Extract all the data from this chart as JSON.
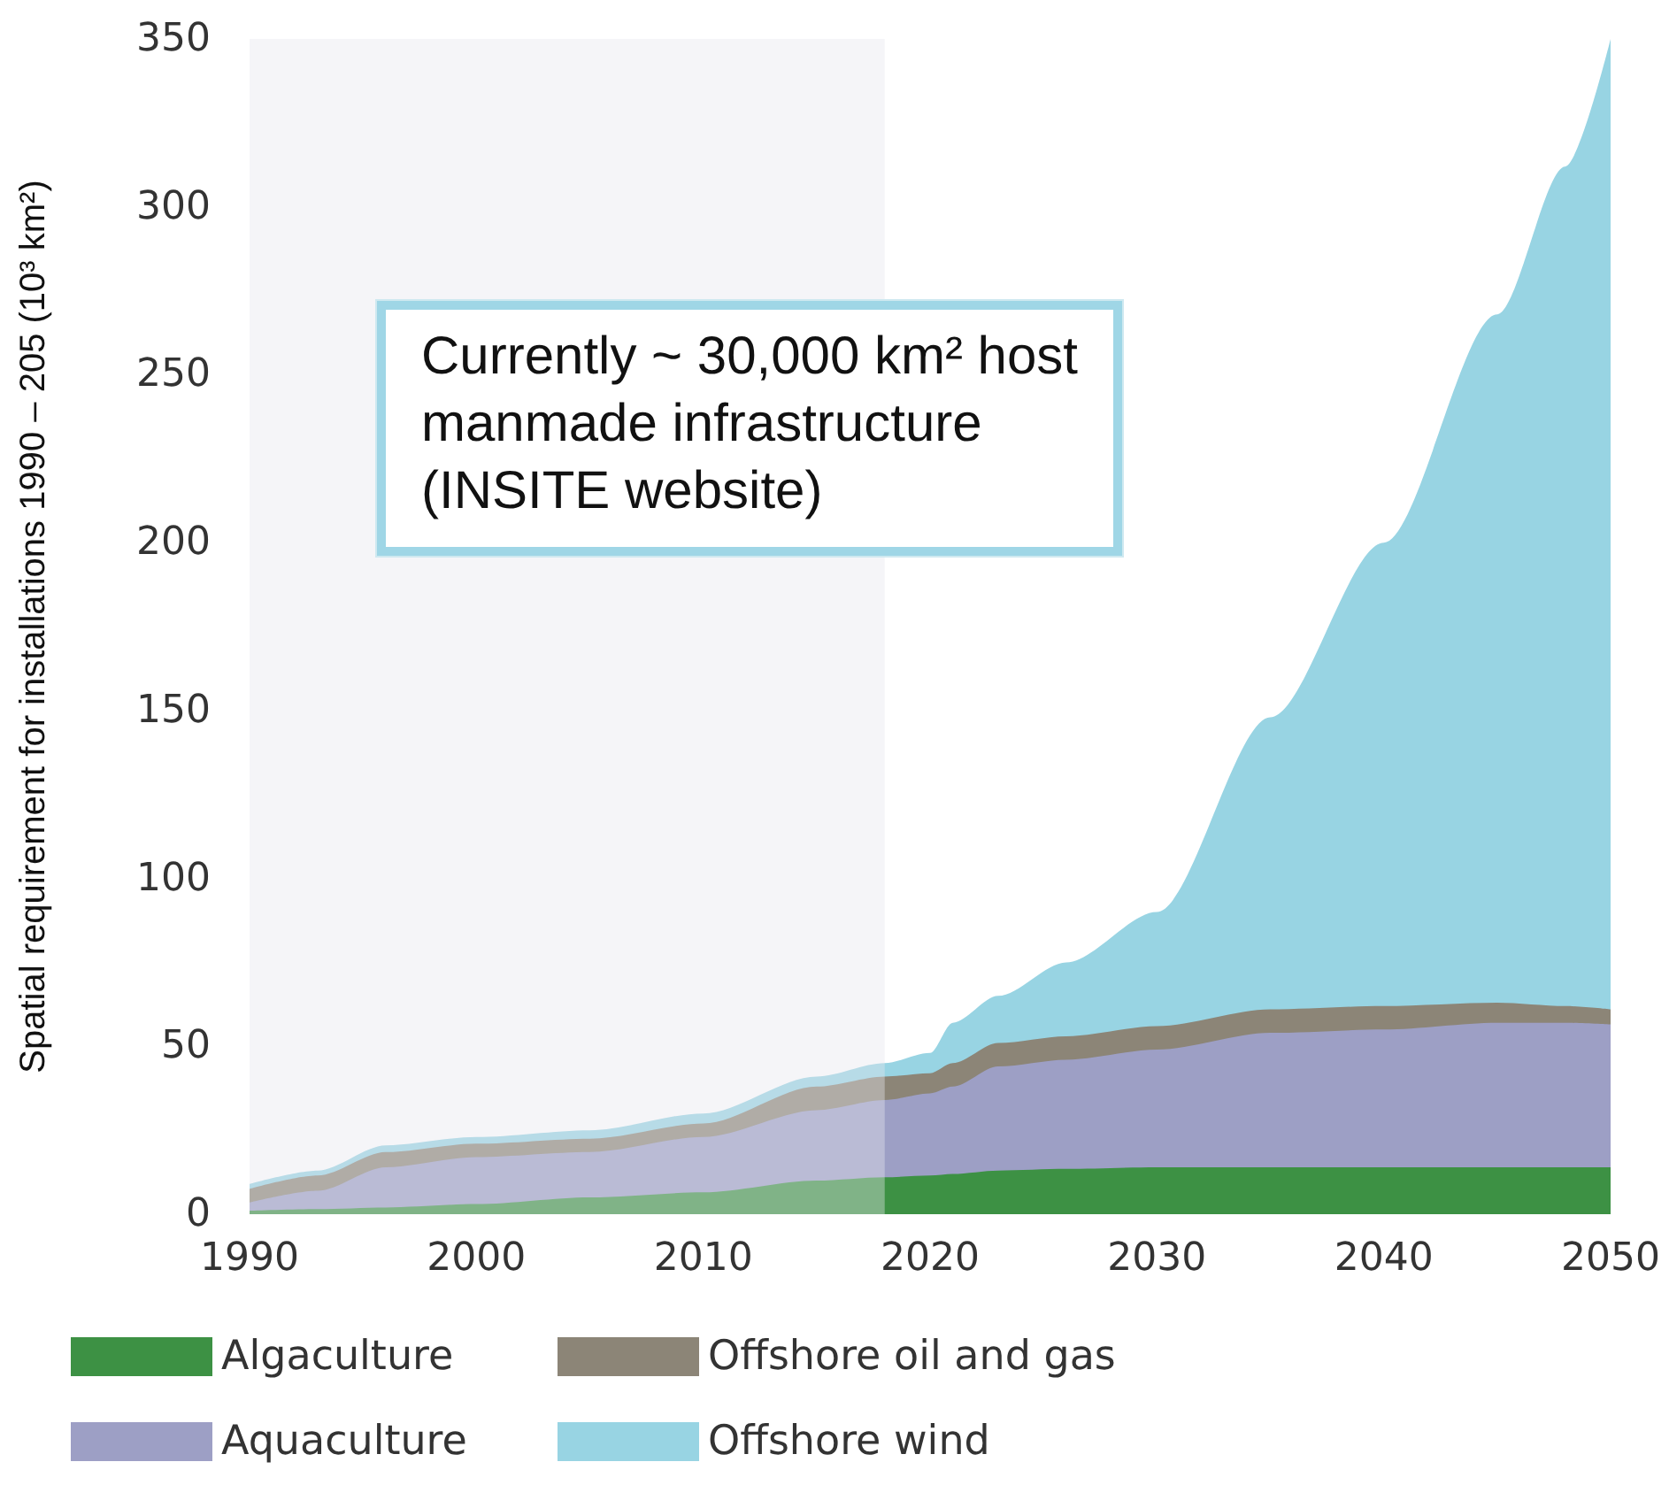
{
  "chart_data": {
    "type": "area",
    "stacked": true,
    "ylabel": "Spatial requirement for installations 1990 – 205 (10³ km²)",
    "x": [
      1990,
      1993,
      1996,
      2000,
      2005,
      2010,
      2015,
      2018,
      2020,
      2021,
      2023,
      2026,
      2030,
      2035,
      2040,
      2045,
      2048,
      2050
    ],
    "series": [
      {
        "name": "Algaculture",
        "color": "#3d9144",
        "values": [
          1,
          1.5,
          2,
          3,
          5,
          6.5,
          10,
          11,
          11.5,
          12,
          13,
          13.5,
          14,
          14,
          14,
          14,
          14,
          14
        ]
      },
      {
        "name": "Aquaculture",
        "color": "#9d9fc5",
        "values": [
          2.5,
          5.5,
          12,
          14,
          13.5,
          16.5,
          21,
          23,
          24.5,
          26,
          31,
          32.5,
          35,
          40,
          41,
          43,
          43,
          42.5
        ]
      },
      {
        "name": "Offshore oil and gas",
        "color": "#8c8577",
        "values": [
          4,
          4.5,
          4.5,
          4,
          4,
          4,
          7,
          7,
          6,
          7,
          7,
          7,
          7,
          7,
          7,
          6,
          5,
          4.5
        ]
      },
      {
        "name": "Offshore wind",
        "color": "#98d4e3",
        "values": [
          1.5,
          1.5,
          2,
          2,
          2.5,
          3,
          3,
          4,
          6,
          12,
          14,
          22,
          34,
          87,
          138,
          205,
          250,
          289
        ]
      }
    ],
    "xlim": [
      1990,
      2050
    ],
    "xticks": [
      1990,
      2000,
      2010,
      2020,
      2030,
      2040,
      2050
    ],
    "ylim": [
      0,
      350
    ],
    "yticks": [
      0,
      50,
      100,
      150,
      200,
      250,
      300,
      350
    ],
    "bands": [
      {
        "axis": "x",
        "from": 1990,
        "to": 2018,
        "color": "#e6e6ee"
      }
    ],
    "annotations": [
      "Currently ~ 30,000 km² host\nmanmade infrastructure\n(INSITE website)"
    ],
    "grid": false,
    "legend": "bottom"
  }
}
